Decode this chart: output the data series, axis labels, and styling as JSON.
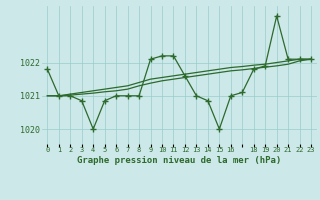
{
  "hours": [
    0,
    1,
    2,
    3,
    4,
    5,
    6,
    7,
    8,
    9,
    10,
    11,
    12,
    13,
    14,
    15,
    16,
    17,
    18,
    19,
    20,
    21,
    22,
    23
  ],
  "pressure_main": [
    1021.8,
    1021.0,
    1021.0,
    1020.85,
    1020.0,
    1020.85,
    1021.0,
    1021.0,
    1021.0,
    1022.1,
    1022.2,
    1022.2,
    1021.6,
    1021.0,
    1020.85,
    1020.0,
    1021.0,
    1021.1,
    1021.8,
    1021.9,
    1023.4,
    1022.1,
    1022.1,
    1022.1
  ],
  "pressure_smooth1": [
    1021.0,
    1021.0,
    1021.05,
    1021.1,
    1021.15,
    1021.2,
    1021.25,
    1021.3,
    1021.4,
    1021.5,
    1021.55,
    1021.6,
    1021.65,
    1021.7,
    1021.75,
    1021.8,
    1021.85,
    1021.88,
    1021.92,
    1021.95,
    1022.0,
    1022.05,
    1022.1,
    1022.1
  ],
  "pressure_smooth2": [
    1021.0,
    1021.0,
    1021.02,
    1021.05,
    1021.08,
    1021.12,
    1021.15,
    1021.2,
    1021.3,
    1021.38,
    1021.45,
    1021.5,
    1021.55,
    1021.6,
    1021.65,
    1021.7,
    1021.75,
    1021.78,
    1021.82,
    1021.86,
    1021.9,
    1021.95,
    1022.05,
    1022.1
  ],
  "ylim": [
    1019.55,
    1023.7
  ],
  "yticks": [
    1020,
    1021,
    1022
  ],
  "xtick_labels": [
    "0",
    "1",
    "2",
    "3",
    "4",
    "5",
    "6",
    "7",
    "8",
    "9",
    "10",
    "11",
    "12",
    "13",
    "14",
    "15",
    "16",
    "",
    "18",
    "19",
    "20",
    "21",
    "22",
    "23"
  ],
  "xlabel": "Graphe pression niveau de la mer (hPa)",
  "line_color": "#2d6a2d",
  "bg_color": "#cce8e8",
  "grid_color": "#99cccc",
  "marker": "+",
  "markersize": 4,
  "markeredgewidth": 1.0,
  "linewidth": 0.9
}
